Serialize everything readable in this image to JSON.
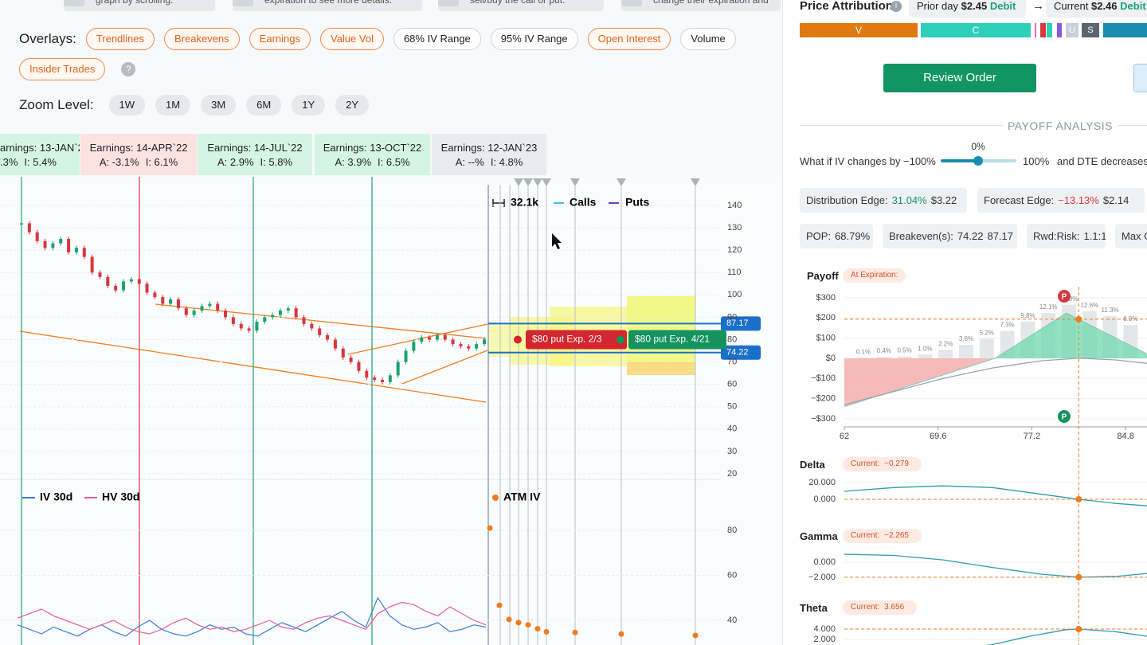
{
  "tips": [
    "graph by scrolling.",
    "expiration to see more details.",
    "sell/buy the call or put.",
    "change their expiration and"
  ],
  "overlays": {
    "label": "Overlays:",
    "items": [
      {
        "text": "Trendlines",
        "on": true
      },
      {
        "text": "Breakevens",
        "on": true
      },
      {
        "text": "Earnings",
        "on": true
      },
      {
        "text": "Value Vol",
        "on": true
      },
      {
        "text": "68% IV Range",
        "on": false
      },
      {
        "text": "95% IV Range",
        "on": false
      },
      {
        "text": "Open Interest",
        "on": true
      },
      {
        "text": "Volume",
        "on": false
      },
      {
        "text": "Insider Trades",
        "on": true
      }
    ],
    "help": "?"
  },
  "zoom": {
    "label": "Zoom Level:",
    "items": [
      "1W",
      "1M",
      "3M",
      "6M",
      "1Y",
      "2Y"
    ]
  },
  "earnings": [
    {
      "title": "arnings: 13-JAN`22",
      "a": ".3%",
      "i": "I: 5.4%",
      "tone": "green"
    },
    {
      "title": "Earnings: 14-APR`22",
      "a": "A: -3.1%",
      "i": "I: 6.1%",
      "tone": "red"
    },
    {
      "title": "Earnings: 14-JUL`22",
      "a": "A: 2.9%",
      "i": "I: 5.8%",
      "tone": "green"
    },
    {
      "title": "Earnings: 13-OCT`22",
      "a": "A: 3.9%",
      "i": "I: 6.5%",
      "tone": "green"
    },
    {
      "title": "Earnings: 12-JAN`23",
      "a": "A: --%",
      "i": "I: 4.8%",
      "tone": "gray"
    }
  ],
  "price_chart": {
    "type": "candlestick",
    "ylim": [
      18,
      148
    ],
    "yticks": [
      140,
      130,
      120,
      110,
      100,
      90,
      80,
      70,
      60,
      50,
      40,
      30,
      20
    ],
    "closes": [
      132,
      128,
      124,
      121,
      123,
      125,
      119,
      121,
      117,
      110,
      108,
      104,
      102,
      106,
      107,
      105,
      101,
      99,
      96,
      98,
      94,
      91,
      93,
      95,
      96,
      93,
      90,
      87,
      85,
      84,
      88,
      90,
      91,
      93,
      94,
      90,
      87,
      85,
      82,
      80,
      76,
      72,
      70,
      66,
      63,
      62,
      61,
      64,
      70,
      75,
      79,
      81,
      80,
      82,
      80,
      78,
      77,
      76,
      78,
      80
    ],
    "legend": {
      "range": "32.1k",
      "calls": "Calls",
      "puts": "Puts"
    },
    "breakevens": [
      87.17,
      74.22
    ],
    "positions": [
      "$80 put Exp. 2/3",
      "$80 put Exp. 4/21"
    ]
  },
  "iv_chart": {
    "type": "line",
    "ylim": [
      30,
      88
    ],
    "yticks": [
      80,
      60,
      40
    ],
    "series": [
      {
        "name": "IV 30d",
        "color": "#3b7dd8",
        "values": [
          38,
          36,
          34,
          37,
          35,
          33,
          36,
          38,
          35,
          33,
          37,
          40,
          36,
          34,
          33,
          35,
          38,
          36,
          37,
          34,
          33,
          36,
          39,
          37,
          35,
          38,
          41,
          44,
          40,
          37,
          50,
          42,
          38,
          36,
          37,
          39,
          35,
          36,
          38,
          37
        ]
      },
      {
        "name": "HV 30d",
        "color": "#e0609a",
        "values": [
          41,
          43,
          45,
          42,
          40,
          38,
          36,
          38,
          40,
          37,
          35,
          34,
          36,
          39,
          41,
          38,
          36,
          37,
          35,
          36,
          38,
          40,
          37,
          36,
          39,
          41,
          42,
          40,
          38,
          36,
          43,
          46,
          48,
          47,
          44,
          42,
          46,
          43,
          40,
          38
        ]
      }
    ],
    "atm": {
      "name": "ATM IV",
      "color": "#f07c1e",
      "values": [
        81,
        46.7,
        40.4,
        39,
        38,
        36.3,
        34.9,
        34.6,
        33.9,
        33.3
      ]
    }
  },
  "attribution": {
    "title": "Price Attribution",
    "info": "i",
    "prior_label": "Prior day",
    "prior_value": "$2.45",
    "prior_type": "Debit",
    "arrow": "→",
    "current_label": "Current",
    "current_value": "$2.46",
    "current_type": "Debit",
    "segments": [
      "V",
      "C",
      "U",
      "S"
    ]
  },
  "review": "Review Order",
  "payoff_heading": "PAYOFF ANALYSIS",
  "whatif": {
    "prefix": "What if IV changes by",
    "min": "−100%",
    "value": "0%",
    "max": "100%",
    "suffix": "and DTE decreases b"
  },
  "stats": [
    {
      "label": "Distribution Edge:",
      "value": "31.04%",
      "tone": "good",
      "extra": "$3.22"
    },
    {
      "label": "Forecast Edge:",
      "value": "−13.13%",
      "tone": "bad",
      "extra": "$2.14"
    },
    {
      "label": "POP:",
      "value": "68.79%"
    },
    {
      "label": "Breakeven(s):",
      "value": "74.22",
      "extra": "87.17"
    },
    {
      "label": "Rwd:Risk:",
      "value": "1.1:1"
    },
    {
      "label": "Max G"
    }
  ],
  "payoff_chart": {
    "type": "area",
    "title": "Payoff",
    "badge": "At Expiration:",
    "ylim": [
      -340,
      340
    ],
    "yticks": [
      {
        "value": 300,
        "label": "$300"
      },
      {
        "value": 200,
        "label": "$200"
      },
      {
        "value": 100,
        "label": "$100"
      },
      {
        "value": 0,
        "label": "$0"
      },
      {
        "value": -100,
        "label": "−$100"
      },
      {
        "value": -200,
        "label": "−$200"
      },
      {
        "value": -300,
        "label": "−$300"
      }
    ],
    "xlim": [
      62,
      86.6
    ],
    "xticks": [
      62,
      69.6,
      77.2,
      84.8
    ],
    "expiration": {
      "x": [
        62,
        74.22,
        80,
        86.6
      ],
      "y": [
        -240,
        0,
        225,
        20
      ]
    },
    "today": {
      "x": [
        62,
        66,
        70,
        74,
        78,
        81,
        84,
        86.6
      ],
      "y": [
        -230,
        -165,
        -100,
        -48,
        -12,
        0,
        -8,
        -25
      ]
    },
    "probabilities": {
      "values": [
        0.1,
        0.4,
        0.5,
        1.0,
        2.2,
        3.6,
        5.2,
        7.3,
        9.8,
        12.1,
        14.3,
        12.6,
        11.3,
        8.9
      ],
      "value_labels": [
        "0.1%",
        "0.4%",
        "0.5%",
        "1.0%",
        "2.2%",
        "3.6%",
        "5.2%",
        "7.3%",
        "9.8%",
        "12.1%",
        "14.3%",
        "12.6%",
        "11.3%",
        "8.9%"
      ]
    },
    "current_x": 81,
    "markers": [
      "P",
      "P"
    ]
  },
  "greeks": [
    {
      "name": "Delta",
      "current_label": "Current:",
      "current": "−0.279",
      "ylim": [
        -22,
        30.5
      ],
      "yticks": [
        {
          "value": 20,
          "label": "20.000"
        },
        {
          "value": 0,
          "label": "0.000"
        }
      ],
      "x": [
        62,
        66,
        70,
        74,
        78,
        81,
        84,
        86.6
      ],
      "y": [
        9.5,
        14,
        16,
        14,
        6,
        0,
        -5,
        -8
      ]
    },
    {
      "name": "Gamma",
      "current_label": "Current:",
      "current": "−2.265",
      "ylim": [
        -3.6,
        1.9
      ],
      "yticks": [
        {
          "value": 0,
          "label": "0.000"
        },
        {
          "value": -2,
          "label": "−2.000"
        }
      ],
      "x": [
        62,
        66,
        70,
        74,
        78,
        81,
        84,
        86.6
      ],
      "y": [
        1.05,
        0.9,
        0.3,
        -0.7,
        -1.6,
        -2.0,
        -1.9,
        -1.5
      ]
    },
    {
      "name": "Theta",
      "current_label": "Current:",
      "current": "3.656",
      "ylim": [
        0.92,
        5.85
      ],
      "yticks": [
        {
          "value": 4,
          "label": "4.000"
        },
        {
          "value": 2,
          "label": "2.000"
        }
      ],
      "x": [
        72,
        74,
        77,
        80,
        81,
        84,
        86.6
      ],
      "y": [
        0.3,
        1.0,
        2.6,
        3.9,
        4.0,
        3.5,
        2.6
      ]
    }
  ]
}
